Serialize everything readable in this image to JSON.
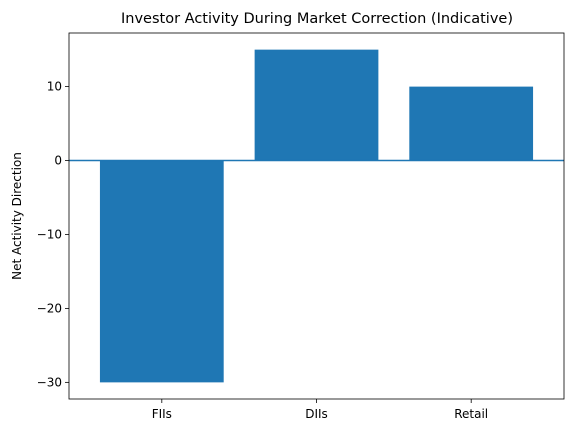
{
  "chart_data": {
    "type": "bar",
    "title": "Investor Activity During Market Correction (Indicative)",
    "xlabel": "",
    "ylabel": "Net Activity Direction",
    "categories": [
      "FIIs",
      "DIIs",
      "Retail"
    ],
    "values": [
      -30,
      15,
      10
    ],
    "ylim": [
      -32.25,
      17.25
    ],
    "yticks": [
      -30,
      -20,
      -10,
      0,
      10
    ],
    "ytick_labels": [
      "−30",
      "−20",
      "−10",
      "0",
      "10"
    ],
    "bar_color": "#1f77b4",
    "zero_line_color": "#1f77b4",
    "grid": false,
    "legend": "none"
  }
}
